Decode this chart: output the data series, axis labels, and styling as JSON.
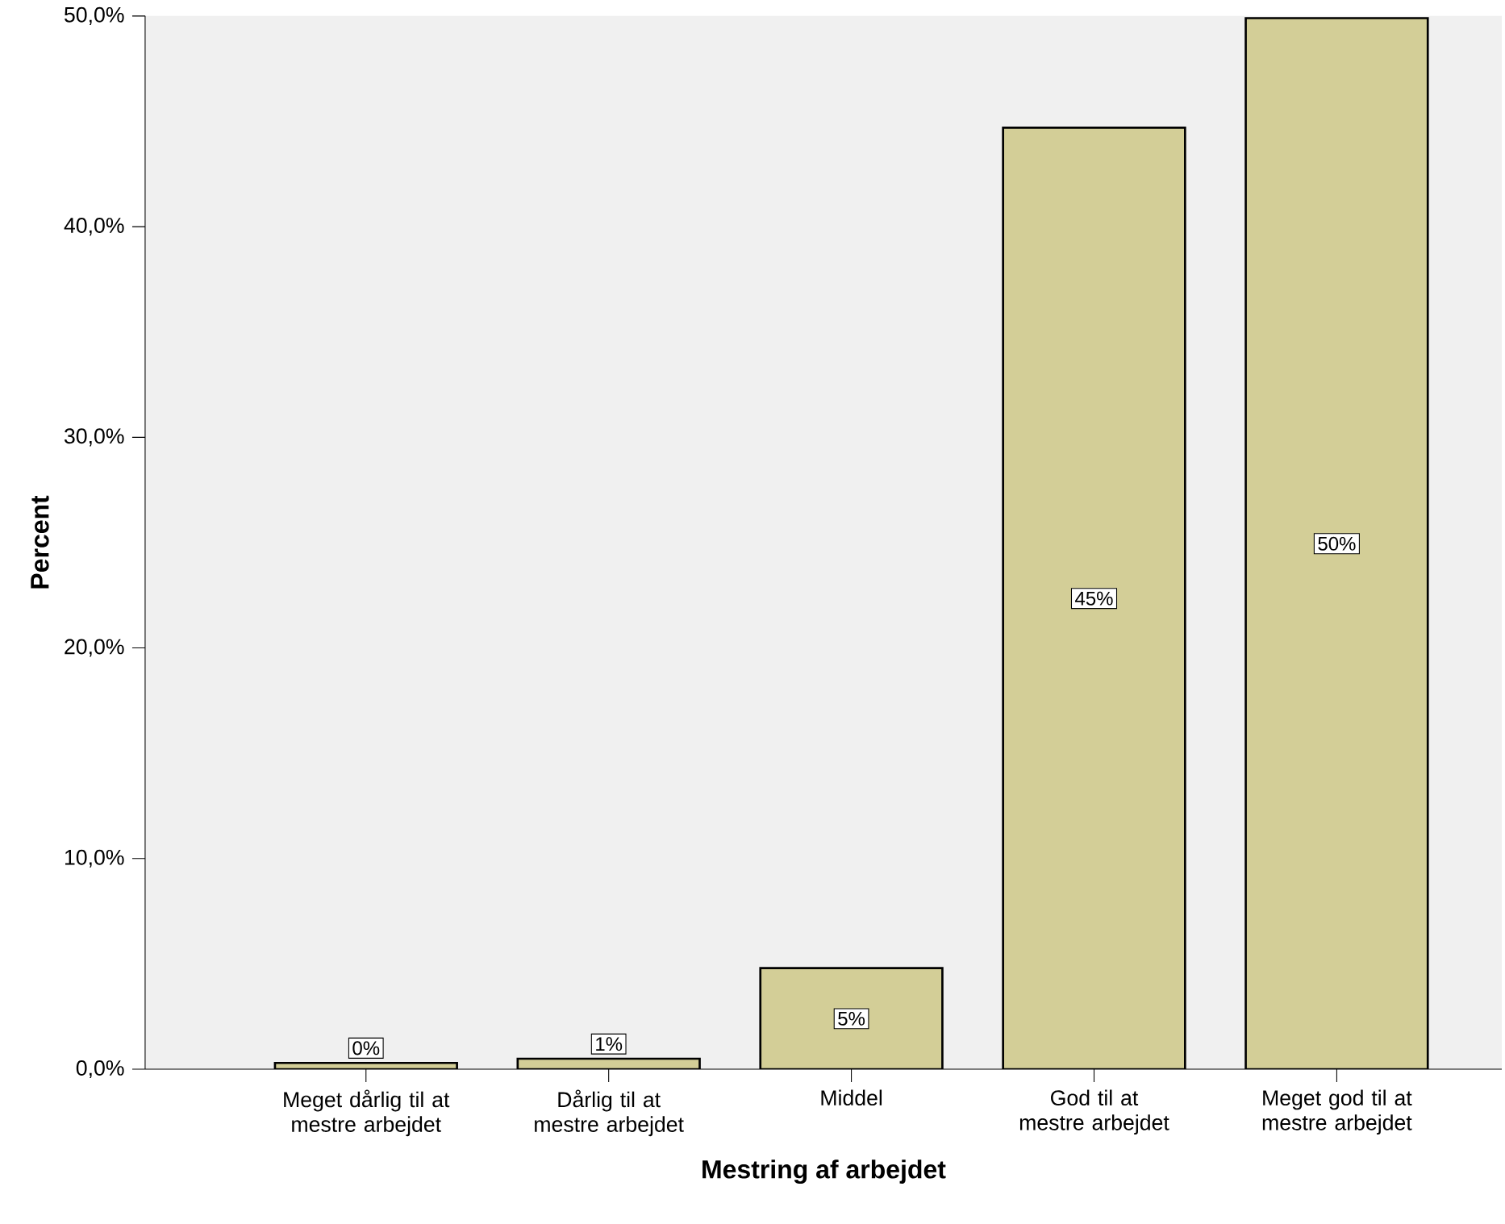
{
  "chart_data": {
    "type": "bar",
    "xlabel": "Mestring af arbejdet",
    "ylabel": "Percent",
    "categories": [
      "Meget dårlig til at mestre arbejdet",
      "Dårlig til at mestre arbejdet",
      "Middel",
      "God til at mestre arbejdet",
      "Meget god til at mestre arbejdet"
    ],
    "values": [
      0.3,
      0.5,
      4.8,
      44.7,
      49.9
    ],
    "value_labels": [
      "0%",
      "1%",
      "5%",
      "45%",
      "50%"
    ],
    "color": "#d3ce97",
    "ylim": [
      0,
      50
    ],
    "yticks": [
      {
        "value": 0,
        "label": "0,0%"
      },
      {
        "value": 10,
        "label": "10,0%"
      },
      {
        "value": 20,
        "label": "20,0%"
      },
      {
        "value": 30,
        "label": "30,0%"
      },
      {
        "value": 40,
        "label": "40,0%"
      },
      {
        "value": 50,
        "label": "50,0%"
      }
    ],
    "grid": false
  }
}
